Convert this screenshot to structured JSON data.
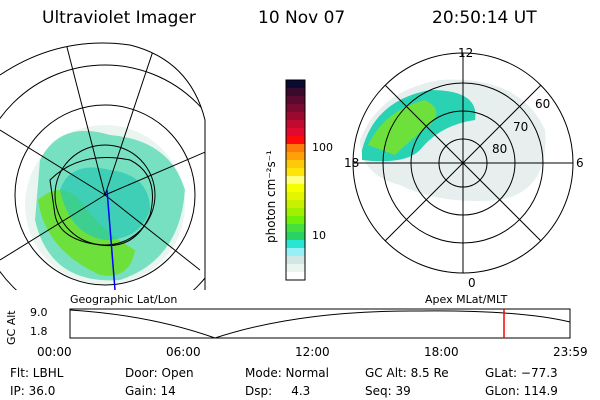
{
  "header": {
    "instrument": "Ultraviolet Imager",
    "date": "10 Nov 07",
    "time": "20:50:14 UT"
  },
  "colorbar": {
    "label": "photon cm⁻²s⁻¹",
    "ticks": [
      "100",
      "10"
    ],
    "colors": [
      "#0a0a33",
      "#3a0a2a",
      "#5a0a30",
      "#7a0a30",
      "#9a0a30",
      "#c00a30",
      "#e00a30",
      "#ff0a0a",
      "#ff7a0a",
      "#ffa00a",
      "#ffc80a",
      "#ffe40a",
      "#ffff80",
      "#f5ff00",
      "#e4f500",
      "#c8f000",
      "#a0f000",
      "#6ef00a",
      "#46e03c",
      "#2ad264",
      "#28e6d2",
      "#96f0f5",
      "#d2e6e6",
      "#eaf5f0",
      "#ffffff"
    ]
  },
  "left_panel": {
    "label": "Geographic Lat/Lon"
  },
  "right_panel": {
    "label": "Apex MLat/MLT",
    "mlt_labels": [
      "12",
      "18",
      "6",
      "0"
    ],
    "lat_labels": [
      "60",
      "70",
      "80"
    ]
  },
  "altitude_plot": {
    "ylabel": "GC Alt",
    "yticks": [
      "9.0",
      "1.8"
    ],
    "xticks": [
      "00:00",
      "06:00",
      "12:00",
      "18:00",
      "23:59"
    ],
    "current_time_fraction": 0.868,
    "marker_color": "#ff0000"
  },
  "status": {
    "row1": [
      "Flt: LBHL",
      "Door: Open",
      "Mode: Normal",
      "GC Alt: 8.5 Re",
      "GLat: −77.3"
    ],
    "row2": [
      "IP: 36.0",
      "Gain: 14",
      "Dsp:     4.3",
      "Seq: 39",
      "GLon: 114.9"
    ]
  }
}
